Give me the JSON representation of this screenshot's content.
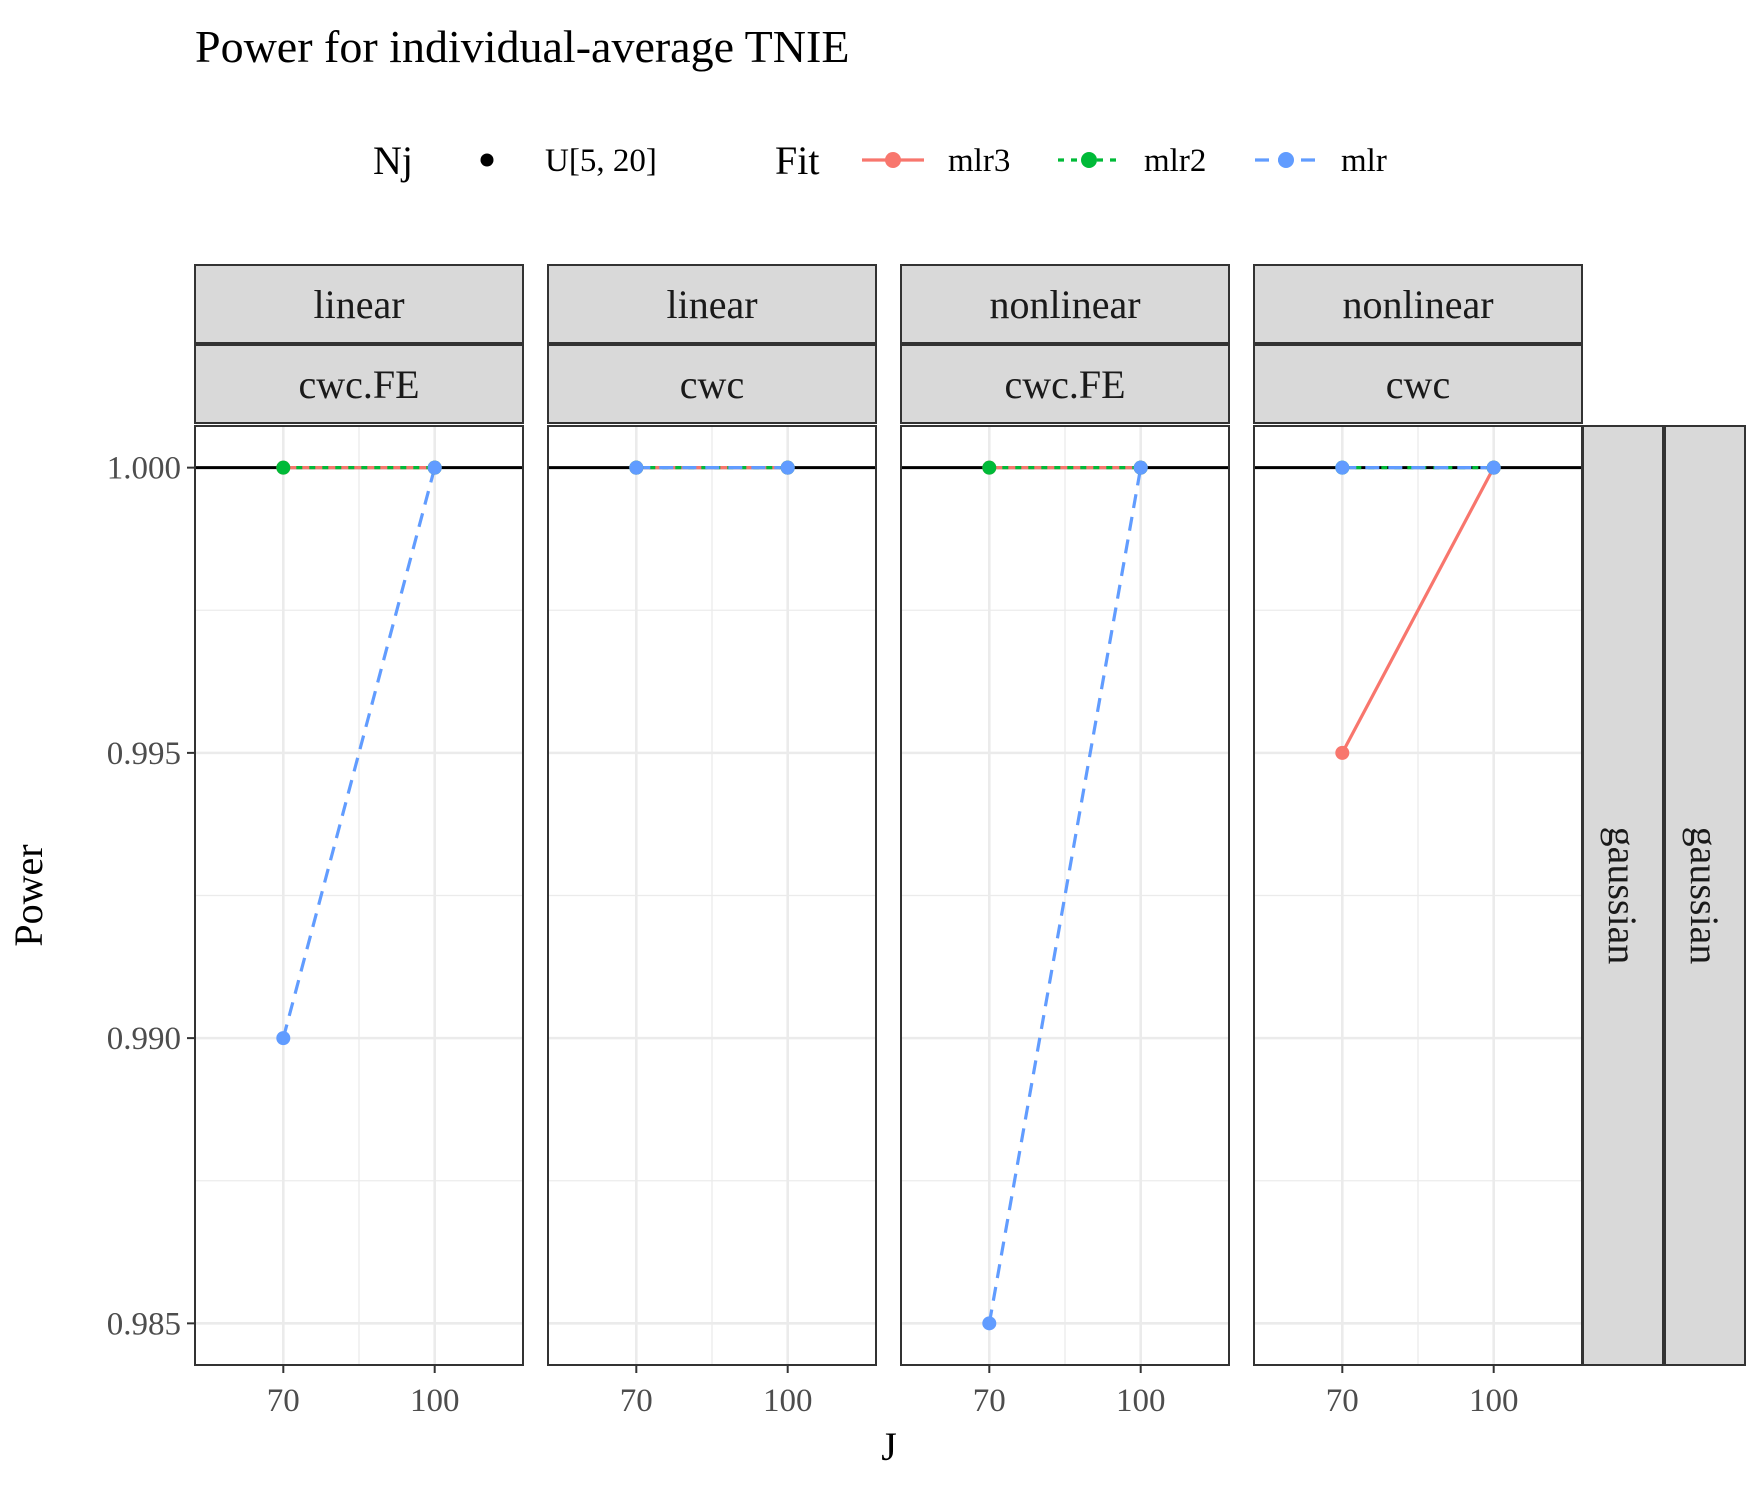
{
  "title": "Power for individual-average TNIE",
  "legend": {
    "nj_title": "Nj",
    "nj_label": "U[5, 20]",
    "fit_title": "Fit",
    "fit_items": [
      {
        "label": "mlr3",
        "color": "#F8766D",
        "dash": "solid"
      },
      {
        "label": "mlr2",
        "color": "#00BA38",
        "dash": "dotted"
      },
      {
        "label": "mlr",
        "color": "#619CFF",
        "dash": "dashed"
      }
    ]
  },
  "axes": {
    "xlabel": "J",
    "ylabel": "Power",
    "x_ticks": [
      70,
      100
    ],
    "x_tick_labels": [
      "70",
      "100"
    ],
    "y_ticks": [
      0.985,
      0.99,
      0.995,
      1.0
    ],
    "y_tick_labels": [
      "0.985",
      "0.990",
      "0.995",
      "1.000"
    ],
    "xlim": [
      52.5,
      117.5
    ],
    "ylim": [
      0.98427,
      1.00073
    ],
    "reference_line": 1.0,
    "grid": true
  },
  "row_strips": [
    "gaussian",
    "gaussian"
  ],
  "chart_data": {
    "type": "line",
    "x": [
      70,
      100
    ],
    "panels": [
      {
        "strip_top": "linear",
        "strip_bottom": "cwc.FE",
        "series": [
          {
            "name": "mlr3",
            "values": [
              1.0,
              1.0
            ]
          },
          {
            "name": "mlr2",
            "values": [
              1.0,
              1.0
            ]
          },
          {
            "name": "mlr",
            "values": [
              0.99,
              1.0
            ]
          }
        ]
      },
      {
        "strip_top": "linear",
        "strip_bottom": "cwc",
        "series": [
          {
            "name": "mlr3",
            "values": [
              1.0,
              1.0
            ]
          },
          {
            "name": "mlr2",
            "values": [
              1.0,
              1.0
            ]
          },
          {
            "name": "mlr",
            "values": [
              1.0,
              1.0
            ]
          }
        ]
      },
      {
        "strip_top": "nonlinear",
        "strip_bottom": "cwc.FE",
        "series": [
          {
            "name": "mlr3",
            "values": [
              1.0,
              1.0
            ]
          },
          {
            "name": "mlr2",
            "values": [
              1.0,
              1.0
            ]
          },
          {
            "name": "mlr",
            "values": [
              0.985,
              1.0
            ]
          }
        ]
      },
      {
        "strip_top": "nonlinear",
        "strip_bottom": "cwc",
        "series": [
          {
            "name": "mlr3",
            "values": [
              0.995,
              1.0
            ]
          },
          {
            "name": "mlr2",
            "values": [
              1.0,
              1.0
            ]
          },
          {
            "name": "mlr",
            "values": [
              1.0,
              1.0
            ]
          }
        ]
      }
    ]
  }
}
